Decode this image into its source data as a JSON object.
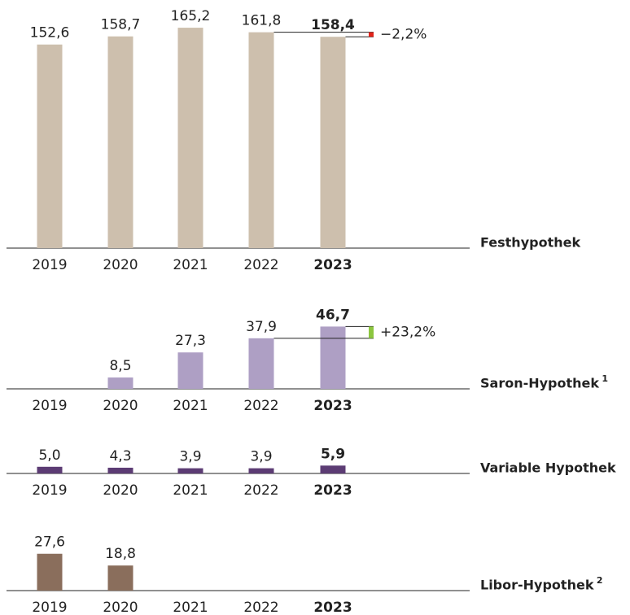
{
  "chart_data": [
    {
      "type": "bar",
      "title": "Festhypothek",
      "categories": [
        "2019",
        "2020",
        "2021",
        "2022",
        "2023"
      ],
      "values": [
        152.6,
        158.7,
        165.2,
        161.8,
        158.4
      ],
      "value_labels": [
        "152,6",
        "158,7",
        "165,2",
        "161,8",
        "158,4"
      ],
      "color": "#cdbfad",
      "change": -2.2,
      "change_label": "−2,2%",
      "change_color": "#e2231a"
    },
    {
      "type": "bar",
      "title": "Saron-Hypothek",
      "footnote": "1",
      "categories": [
        "2019",
        "2020",
        "2021",
        "2022",
        "2023"
      ],
      "values": [
        null,
        8.5,
        27.3,
        37.9,
        46.7
      ],
      "value_labels": [
        null,
        "8,5",
        "27,3",
        "37,9",
        "46,7"
      ],
      "color": "#ae9fc4",
      "change": 23.2,
      "change_label": "+23,2%",
      "change_color": "#8cc63f"
    },
    {
      "type": "bar",
      "title": "Variable Hypothek",
      "categories": [
        "2019",
        "2020",
        "2021",
        "2022",
        "2023"
      ],
      "values": [
        5.0,
        4.3,
        3.9,
        3.9,
        5.9
      ],
      "value_labels": [
        "5,0",
        "4,3",
        "3,9",
        "3,9",
        "5,9"
      ],
      "color": "#5c3c74"
    },
    {
      "type": "bar",
      "title": "Libor-Hypothek",
      "footnote": "2",
      "categories": [
        "2019",
        "2020",
        "2021",
        "2022",
        "2023"
      ],
      "values": [
        27.6,
        18.8,
        null,
        null,
        null
      ],
      "value_labels": [
        "27,6",
        "18,8",
        null,
        null,
        null
      ],
      "color": "#8a6e5c"
    }
  ]
}
